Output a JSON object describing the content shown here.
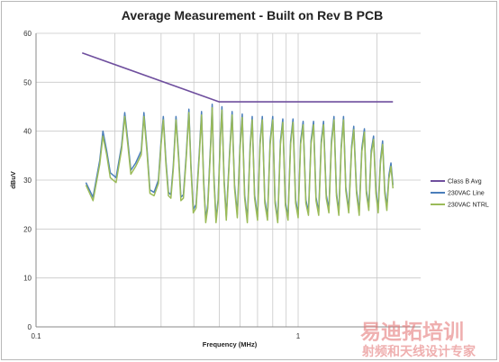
{
  "chart_data": {
    "type": "line",
    "title": "Average Measurement - Built on Rev B PCB",
    "xlabel": "Frequency (MHz)",
    "ylabel": "dBuV",
    "x_scale": "log",
    "xlim": [
      0.1,
      2.3
    ],
    "ylim": [
      0,
      60
    ],
    "x_ticks": [
      "0.1",
      "1"
    ],
    "y_ticks": [
      "0",
      "10",
      "20",
      "30",
      "40",
      "50",
      "60"
    ],
    "grid": "major y lines; major and minor x lines (log decades)",
    "legend_position": "right",
    "series": [
      {
        "name": "Class B Avg",
        "color": "#6f4f9e",
        "points": [
          [
            0.15,
            56
          ],
          [
            0.5,
            46
          ],
          [
            0.5,
            46
          ],
          [
            2.3,
            46
          ]
        ]
      },
      {
        "name": "230VAC Line",
        "color": "#4a7ebb",
        "points": [
          [
            0.155,
            29.5
          ],
          [
            0.165,
            26.5
          ],
          [
            0.175,
            34.0
          ],
          [
            0.18,
            40.0
          ],
          [
            0.186,
            36.0
          ],
          [
            0.192,
            31.5
          ],
          [
            0.202,
            30.5
          ],
          [
            0.212,
            37.0
          ],
          [
            0.218,
            43.8
          ],
          [
            0.224,
            38.0
          ],
          [
            0.23,
            32.0
          ],
          [
            0.24,
            33.5
          ],
          [
            0.252,
            36.0
          ],
          [
            0.258,
            43.8
          ],
          [
            0.265,
            36.5
          ],
          [
            0.272,
            28.0
          ],
          [
            0.282,
            27.5
          ],
          [
            0.293,
            30.0
          ],
          [
            0.3,
            38.0
          ],
          [
            0.306,
            43.0
          ],
          [
            0.313,
            34.0
          ],
          [
            0.32,
            27.5
          ],
          [
            0.327,
            27.0
          ],
          [
            0.334,
            33.0
          ],
          [
            0.342,
            43.0
          ],
          [
            0.35,
            35.0
          ],
          [
            0.357,
            26.5
          ],
          [
            0.365,
            27.0
          ],
          [
            0.374,
            35.0
          ],
          [
            0.383,
            44.5
          ],
          [
            0.39,
            33.0
          ],
          [
            0.398,
            24.0
          ],
          [
            0.408,
            25.0
          ],
          [
            0.42,
            36.0
          ],
          [
            0.428,
            44.0
          ],
          [
            0.436,
            30.0
          ],
          [
            0.444,
            22.0
          ],
          [
            0.452,
            25.0
          ],
          [
            0.464,
            38.0
          ],
          [
            0.47,
            45.5
          ],
          [
            0.477,
            31.0
          ],
          [
            0.486,
            22.0
          ],
          [
            0.495,
            26.0
          ],
          [
            0.505,
            39.0
          ],
          [
            0.512,
            45.0
          ],
          [
            0.522,
            30.0
          ],
          [
            0.532,
            22.5
          ],
          [
            0.548,
            36.0
          ],
          [
            0.56,
            44.0
          ],
          [
            0.572,
            29.0
          ],
          [
            0.586,
            23.0
          ],
          [
            0.6,
            37.0
          ],
          [
            0.612,
            43.5
          ],
          [
            0.625,
            27.0
          ],
          [
            0.64,
            22.0
          ],
          [
            0.656,
            37.0
          ],
          [
            0.668,
            43.0
          ],
          [
            0.682,
            27.0
          ],
          [
            0.7,
            22.5
          ],
          [
            0.716,
            38.0
          ],
          [
            0.73,
            43.0
          ],
          [
            0.746,
            26.0
          ],
          [
            0.764,
            22.5
          ],
          [
            0.782,
            38.0
          ],
          [
            0.8,
            43.0
          ],
          [
            0.816,
            26.0
          ],
          [
            0.836,
            22.0
          ],
          [
            0.856,
            38.0
          ],
          [
            0.874,
            42.5
          ],
          [
            0.894,
            25.5
          ],
          [
            0.915,
            22.5
          ],
          [
            0.936,
            38.0
          ],
          [
            0.956,
            42.5
          ],
          [
            0.978,
            26.0
          ],
          [
            1.0,
            23.0
          ],
          [
            1.022,
            38.0
          ],
          [
            1.045,
            42.0
          ],
          [
            1.07,
            26.0
          ],
          [
            1.095,
            23.5
          ],
          [
            1.12,
            38.0
          ],
          [
            1.145,
            42.0
          ],
          [
            1.17,
            26.5
          ],
          [
            1.198,
            23.5
          ],
          [
            1.225,
            38.0
          ],
          [
            1.25,
            42.0
          ],
          [
            1.28,
            27.0
          ],
          [
            1.31,
            24.0
          ],
          [
            1.34,
            38.0
          ],
          [
            1.37,
            43.0
          ],
          [
            1.4,
            27.5
          ],
          [
            1.43,
            23.5
          ],
          [
            1.46,
            37.0
          ],
          [
            1.49,
            43.0
          ],
          [
            1.52,
            28.5
          ],
          [
            1.56,
            24.0
          ],
          [
            1.6,
            37.0
          ],
          [
            1.63,
            41.0
          ],
          [
            1.67,
            28.0
          ],
          [
            1.71,
            23.5
          ],
          [
            1.75,
            36.5
          ],
          [
            1.79,
            40.5
          ],
          [
            1.82,
            28.0
          ],
          [
            1.86,
            24.5
          ],
          [
            1.9,
            36.0
          ],
          [
            1.94,
            39.0
          ],
          [
            1.98,
            28.0
          ],
          [
            2.02,
            24.0
          ],
          [
            2.06,
            34.0
          ],
          [
            2.1,
            38.0
          ],
          [
            2.14,
            28.0
          ],
          [
            2.18,
            24.5
          ],
          [
            2.22,
            31.0
          ],
          [
            2.26,
            33.5
          ],
          [
            2.3,
            29.0
          ]
        ]
      },
      {
        "name": "230VAC NTRL",
        "color": "#9bbb59",
        "points": [
          [
            0.155,
            29.0
          ],
          [
            0.165,
            25.8
          ],
          [
            0.175,
            33.2
          ],
          [
            0.18,
            39.0
          ],
          [
            0.186,
            35.2
          ],
          [
            0.192,
            30.5
          ],
          [
            0.202,
            29.5
          ],
          [
            0.212,
            36.2
          ],
          [
            0.218,
            43.0
          ],
          [
            0.224,
            37.2
          ],
          [
            0.23,
            31.2
          ],
          [
            0.24,
            32.8
          ],
          [
            0.252,
            35.2
          ],
          [
            0.258,
            43.0
          ],
          [
            0.265,
            35.8
          ],
          [
            0.272,
            27.3
          ],
          [
            0.282,
            26.8
          ],
          [
            0.293,
            29.3
          ],
          [
            0.3,
            37.3
          ],
          [
            0.306,
            42.3
          ],
          [
            0.313,
            33.3
          ],
          [
            0.32,
            26.8
          ],
          [
            0.327,
            26.3
          ],
          [
            0.334,
            32.3
          ],
          [
            0.342,
            42.3
          ],
          [
            0.35,
            34.3
          ],
          [
            0.357,
            25.8
          ],
          [
            0.365,
            26.3
          ],
          [
            0.374,
            34.3
          ],
          [
            0.383,
            43.8
          ],
          [
            0.39,
            32.3
          ],
          [
            0.398,
            23.3
          ],
          [
            0.408,
            24.3
          ],
          [
            0.42,
            35.3
          ],
          [
            0.428,
            43.3
          ],
          [
            0.436,
            29.3
          ],
          [
            0.444,
            21.3
          ],
          [
            0.452,
            24.3
          ],
          [
            0.464,
            37.3
          ],
          [
            0.47,
            44.8
          ],
          [
            0.477,
            30.3
          ],
          [
            0.486,
            21.3
          ],
          [
            0.495,
            25.3
          ],
          [
            0.505,
            38.3
          ],
          [
            0.512,
            44.3
          ],
          [
            0.522,
            29.3
          ],
          [
            0.532,
            21.8
          ],
          [
            0.548,
            35.3
          ],
          [
            0.56,
            43.3
          ],
          [
            0.572,
            28.3
          ],
          [
            0.586,
            22.3
          ],
          [
            0.6,
            36.3
          ],
          [
            0.612,
            42.8
          ],
          [
            0.625,
            26.3
          ],
          [
            0.64,
            21.3
          ],
          [
            0.656,
            36.3
          ],
          [
            0.668,
            42.3
          ],
          [
            0.682,
            26.3
          ],
          [
            0.7,
            21.8
          ],
          [
            0.716,
            37.3
          ],
          [
            0.73,
            42.3
          ],
          [
            0.746,
            25.3
          ],
          [
            0.764,
            21.8
          ],
          [
            0.782,
            37.3
          ],
          [
            0.8,
            42.3
          ],
          [
            0.816,
            25.3
          ],
          [
            0.836,
            21.3
          ],
          [
            0.856,
            37.3
          ],
          [
            0.874,
            41.8
          ],
          [
            0.894,
            24.8
          ],
          [
            0.915,
            21.8
          ],
          [
            0.936,
            37.3
          ],
          [
            0.956,
            41.8
          ],
          [
            0.978,
            25.3
          ],
          [
            1.0,
            22.3
          ],
          [
            1.022,
            37.3
          ],
          [
            1.045,
            41.3
          ],
          [
            1.07,
            25.3
          ],
          [
            1.095,
            22.8
          ],
          [
            1.12,
            37.3
          ],
          [
            1.145,
            41.3
          ],
          [
            1.17,
            25.8
          ],
          [
            1.198,
            22.8
          ],
          [
            1.225,
            37.3
          ],
          [
            1.25,
            41.3
          ],
          [
            1.28,
            26.3
          ],
          [
            1.31,
            23.3
          ],
          [
            1.34,
            37.3
          ],
          [
            1.37,
            42.3
          ],
          [
            1.4,
            26.8
          ],
          [
            1.43,
            22.8
          ],
          [
            1.46,
            36.3
          ],
          [
            1.49,
            42.3
          ],
          [
            1.52,
            27.8
          ],
          [
            1.56,
            23.3
          ],
          [
            1.6,
            36.3
          ],
          [
            1.63,
            40.3
          ],
          [
            1.67,
            27.3
          ],
          [
            1.71,
            22.8
          ],
          [
            1.75,
            35.8
          ],
          [
            1.79,
            39.8
          ],
          [
            1.82,
            27.3
          ],
          [
            1.86,
            23.8
          ],
          [
            1.9,
            35.3
          ],
          [
            1.94,
            38.3
          ],
          [
            1.98,
            27.3
          ],
          [
            2.02,
            23.3
          ],
          [
            2.06,
            33.3
          ],
          [
            2.1,
            37.3
          ],
          [
            2.14,
            27.3
          ],
          [
            2.18,
            23.8
          ],
          [
            2.22,
            30.3
          ],
          [
            2.26,
            32.8
          ],
          [
            2.3,
            28.3
          ]
        ]
      }
    ]
  },
  "watermark": {
    "line1": "易迪拓培训",
    "line2": "射频和天线设计专家",
    "color": "#e26e6e"
  }
}
